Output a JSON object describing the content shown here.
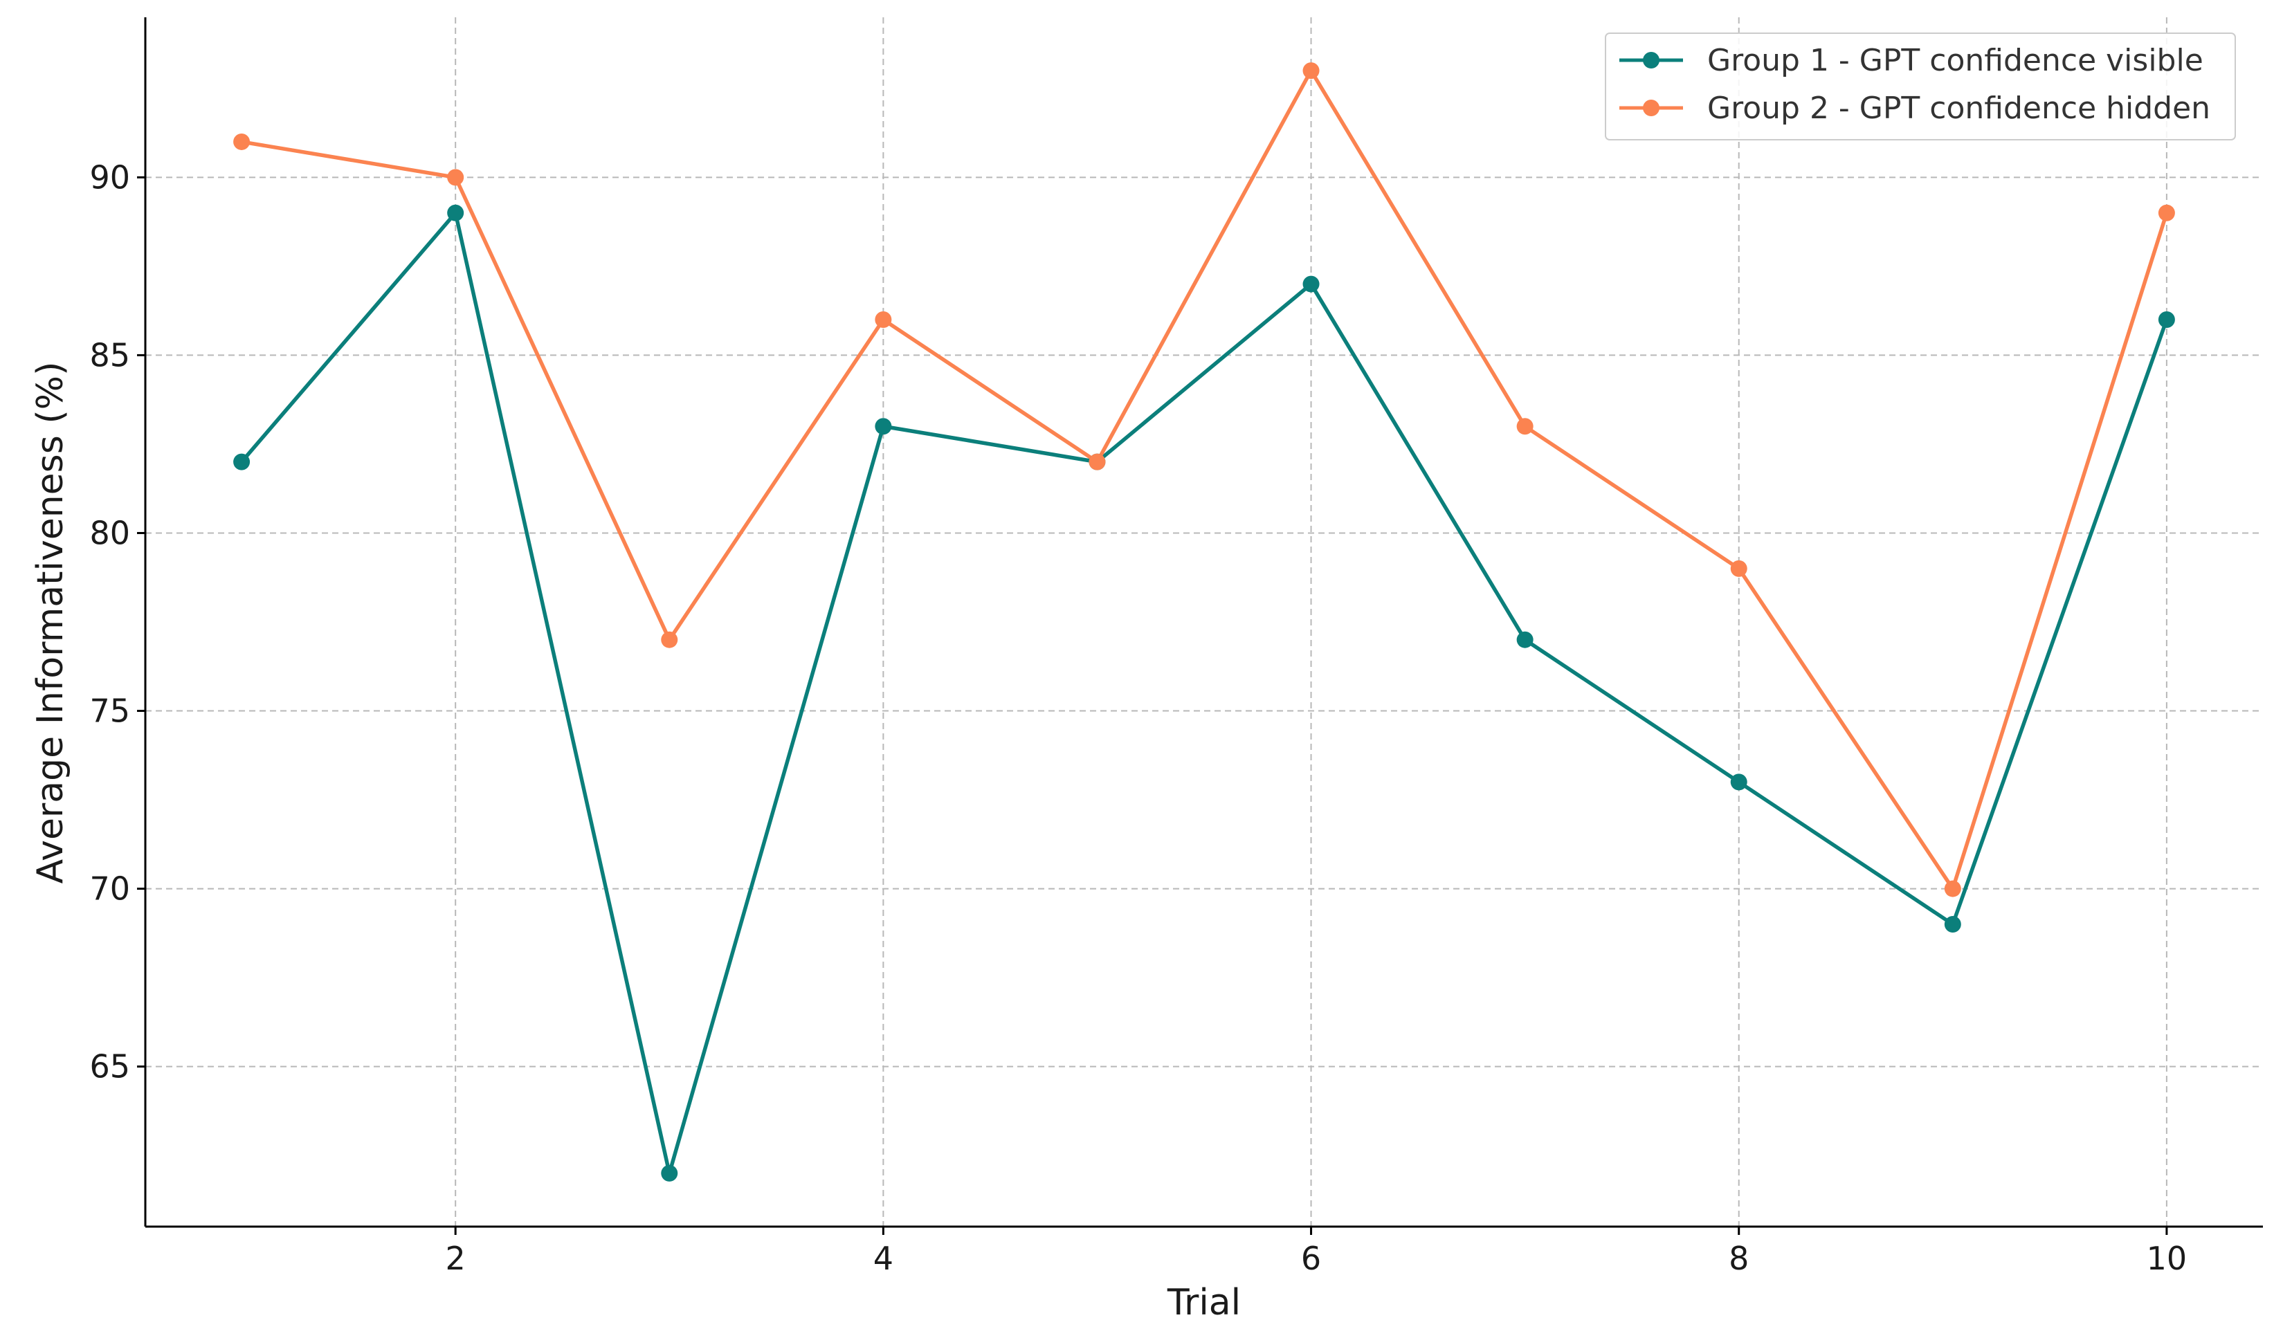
{
  "chart_data": {
    "type": "line",
    "xlabel": "Trial",
    "ylabel": "Average Informativeness (%)",
    "xlim": [
      0.55,
      10.45
    ],
    "ylim": [
      60.5,
      94.5
    ],
    "xticks": [
      2,
      4,
      6,
      8,
      10
    ],
    "yticks": [
      65,
      70,
      75,
      80,
      85,
      90
    ],
    "grid": true,
    "legend_position": "top-right",
    "x": [
      1,
      2,
      3,
      4,
      5,
      6,
      7,
      8,
      9,
      10
    ],
    "series": [
      {
        "name": "Group 1 - GPT confidence visible",
        "color": "#0b7f7b",
        "values": [
          82,
          89,
          62,
          83,
          82,
          87,
          77,
          73,
          69,
          86
        ]
      },
      {
        "name": "Group 2 - GPT confidence hidden",
        "color": "#fb8350",
        "values": [
          91,
          90,
          77,
          86,
          82,
          93,
          83,
          79,
          70,
          89
        ]
      }
    ]
  }
}
